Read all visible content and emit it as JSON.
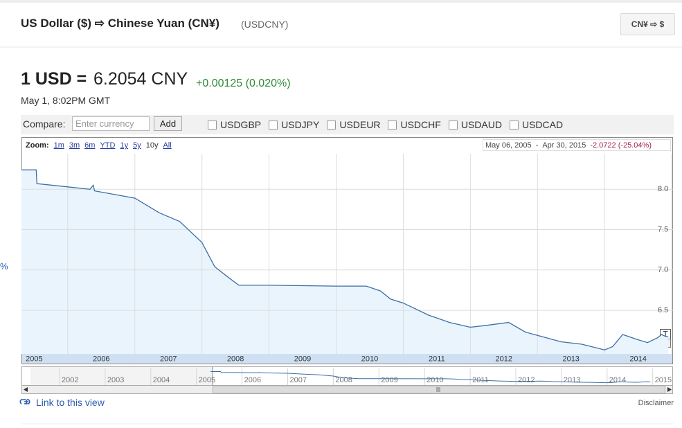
{
  "header": {
    "title": "US Dollar ($) ⇨ Chinese Yuan (CN¥)",
    "symbol": "(USDCNY)",
    "switch_button": "CN¥ ⇨ $"
  },
  "quote": {
    "prefix": "1 USD =",
    "price": "6.2054 CNY",
    "change": "+0.00125 (0.020%)",
    "time": "May 1, 8:02PM GMT"
  },
  "compare": {
    "label": "Compare:",
    "placeholder": "Enter currency",
    "button": "Add",
    "options": [
      "USDGBP",
      "USDJPY",
      "USDEUR",
      "USDCHF",
      "USDAUD",
      "USDCAD"
    ]
  },
  "side_label": "%",
  "chart_data": {
    "type": "line",
    "zoom_label": "Zoom:",
    "zoom_options": [
      "1m",
      "3m",
      "6m",
      "YTD",
      "1y",
      "5y",
      "10y",
      "All"
    ],
    "active_zoom": "10y",
    "range_start": "May 06, 2005",
    "range_separator": "-",
    "range_end": "Apr 30, 2015",
    "range_change": "-2.0722 (-25.04%)",
    "x": [
      2005.31,
      2005.53,
      2005.54,
      2006.0,
      2006.33,
      2006.38,
      2006.4,
      2007.0,
      2007.36,
      2007.67,
      2008.0,
      2008.19,
      2008.39,
      2008.55,
      2009.0,
      2010.0,
      2010.45,
      2010.66,
      2010.81,
      2011.0,
      2011.38,
      2011.69,
      2012.0,
      2012.21,
      2012.57,
      2012.82,
      2013.0,
      2013.35,
      2013.66,
      2014.0,
      2014.12,
      2014.27,
      2014.48,
      2014.64,
      2014.79,
      2014.85,
      2014.9,
      2014.95
    ],
    "values": [
      8.24,
      8.24,
      8.07,
      8.03,
      8.0,
      8.05,
      7.98,
      7.89,
      7.71,
      7.6,
      7.34,
      7.04,
      6.91,
      6.81,
      6.81,
      6.8,
      6.8,
      6.74,
      6.64,
      6.59,
      6.44,
      6.35,
      6.29,
      6.31,
      6.35,
      6.23,
      6.19,
      6.11,
      6.08,
      6.01,
      6.05,
      6.2,
      6.14,
      6.1,
      6.16,
      6.2,
      6.18,
      6.17
    ],
    "color": "#3a6ea5",
    "area_color": "#e9f4fd",
    "xlim": [
      2005.31,
      2015.02
    ],
    "xticks": [
      2005,
      2006,
      2007,
      2008,
      2009,
      2010,
      2011,
      2012,
      2013,
      2014,
      2015
    ],
    "ylim": [
      5.96,
      8.44
    ],
    "yticks": [
      6.5,
      {
        "value": 7,
        "label": "7.0"
      },
      7.5,
      {
        "value": 8,
        "label": "8.0"
      }
    ],
    "grid": true,
    "flag": "T",
    "navigator_years": [
      "2002",
      "2003",
      "2004",
      "2005",
      "2006",
      "2007",
      "2008",
      "2009",
      "2010",
      "2011",
      "2012",
      "2013",
      "2014",
      "2015"
    ]
  },
  "footer": {
    "link": "Link to this view",
    "disclaimer": "Disclaimer"
  }
}
